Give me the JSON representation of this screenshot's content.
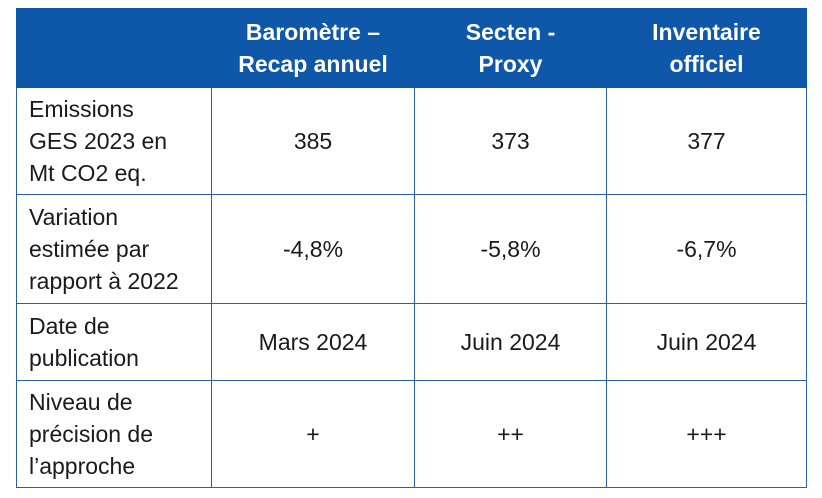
{
  "table": {
    "headers": [
      "",
      "Baromètre – Recap annuel",
      "Secten - Proxy",
      "Inventaire officiel"
    ],
    "header_lines": [
      [
        ""
      ],
      [
        "Baromètre –",
        "Recap annuel"
      ],
      [
        "Secten -",
        "Proxy"
      ],
      [
        "Inventaire",
        "officiel"
      ]
    ],
    "rows": [
      {
        "label": "Emissions GES 2023 en Mt CO2 eq.",
        "label_lines": [
          "Emissions",
          "GES 2023 en",
          "Mt CO2 eq."
        ],
        "values": [
          "385",
          "373",
          "377"
        ]
      },
      {
        "label": "Variation estimée par rapport à 2022",
        "label_lines": [
          "Variation",
          "estimée par",
          "rapport à 2022"
        ],
        "values": [
          "-4,8%",
          "-5,8%",
          "-6,7%"
        ]
      },
      {
        "label": "Date de publication",
        "label_lines": [
          "Date de",
          "publication"
        ],
        "values": [
          "Mars 2024",
          "Juin 2024",
          "Juin 2024"
        ]
      },
      {
        "label": "Niveau de précision de l’approche",
        "label_lines": [
          "Niveau de",
          "précision de",
          "l’approche"
        ],
        "values": [
          "+",
          "++",
          "+++"
        ]
      }
    ]
  },
  "colors": {
    "header_bg": "#0f57a8",
    "header_text": "#ffffff",
    "border": "#2b5fa6",
    "text": "#1a1a1a"
  }
}
